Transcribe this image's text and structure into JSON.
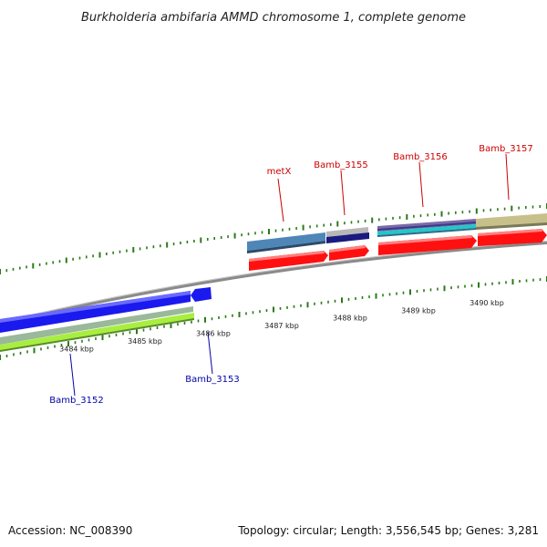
{
  "title": "Burkholderia ambifaria AMMD chromosome 1, complete genome",
  "footer": {
    "accession": "Accession: NC_008390",
    "summary": "Topology: circular; Length: 3,556,545 bp; Genes: 3,281"
  },
  "colors": {
    "backbone": "#8a8a8a",
    "tick": "#2a7a1a",
    "forward_label": "#cc0000",
    "reverse_label": "#0000aa",
    "cds_red": "#ff1010",
    "cds_blue": "#1a1aee",
    "gene_steel": "#4f86b8",
    "gene_navy": "#1a1a80",
    "gene_purple": "#7a6aa8",
    "gene_cyan": "#20c8c8",
    "gene_khaki": "#c8c08a",
    "gene_lime": "#a8ee40",
    "gene_sage": "#9ab89a",
    "gene_grey": "#b8b8b8"
  },
  "scale": {
    "unit": "kbp",
    "ticks": [
      {
        "kbp": 3484,
        "label": "3484 kbp"
      },
      {
        "kbp": 3485,
        "label": "3485 kbp"
      },
      {
        "kbp": 3486,
        "label": "3486 kbp"
      },
      {
        "kbp": 3487,
        "label": "3487 kbp"
      },
      {
        "kbp": 3488,
        "label": "3488 kbp"
      },
      {
        "kbp": 3489,
        "label": "3489 kbp"
      },
      {
        "kbp": 3490,
        "label": "3490 kbp"
      }
    ]
  },
  "genes": [
    {
      "name": "Bamb_3152",
      "strand": "reverse"
    },
    {
      "name": "Bamb_3153",
      "strand": "reverse"
    },
    {
      "name": "metX",
      "strand": "forward"
    },
    {
      "name": "Bamb_3155",
      "strand": "forward"
    },
    {
      "name": "Bamb_3156",
      "strand": "forward"
    },
    {
      "name": "Bamb_3157",
      "strand": "forward"
    }
  ]
}
